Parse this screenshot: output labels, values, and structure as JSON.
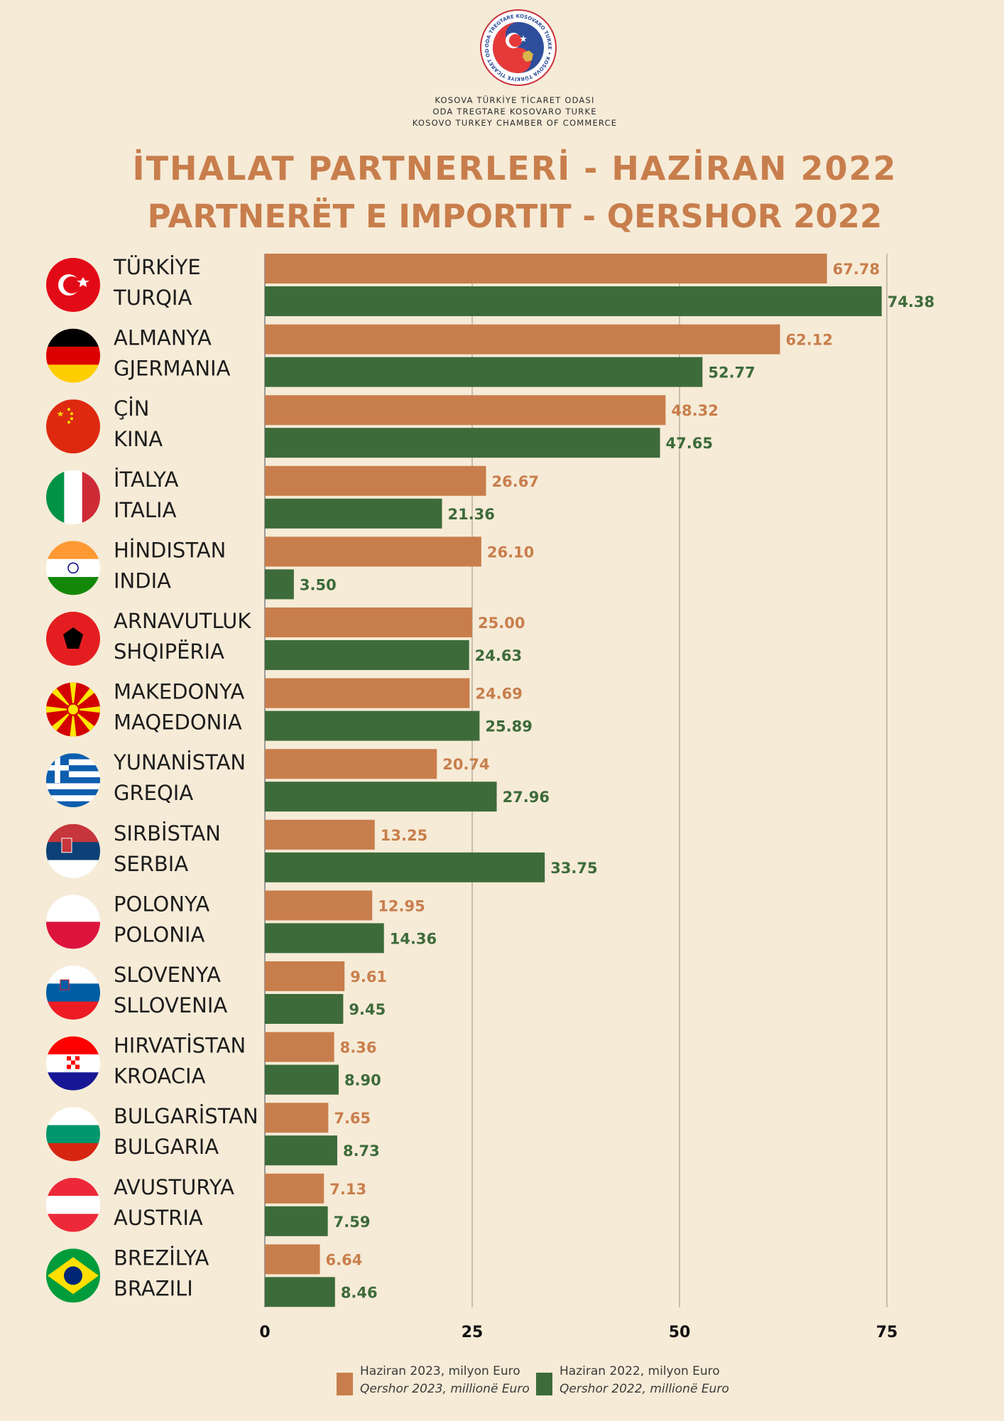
{
  "header": {
    "org_lines": [
      "KOSOVA TÜRKİYE TİCARET ODASI",
      "ODA TREGTARE KOSOVARO TURKE",
      "KOSOVO TURKEY CHAMBER OF COMMERCE"
    ],
    "logo_text": "ODA TREGTARE KOSOVARO TURKE • KOSOVA TÜRKİYE TİCARET ODASI"
  },
  "colors": {
    "background": "#f6ebd7",
    "series_2023": "#c87e4c",
    "series_2022": "#3d6b3a",
    "title": "#c87e4c"
  },
  "chart_data": {
    "type": "bar",
    "orientation": "horizontal",
    "title": "İTHALAT PARTNERLERİ - HAZİRAN 2022",
    "subtitle": "PARTNERËT E IMPORTIT - QERSHOR 2022",
    "categories": [
      {
        "tr": "TÜRKİYE",
        "sq": "TURQIA",
        "flag": "turkey-flag-icon"
      },
      {
        "tr": "ALMANYA",
        "sq": "GJERMANIA",
        "flag": "germany-flag-icon"
      },
      {
        "tr": "ÇİN",
        "sq": "KINA",
        "flag": "china-flag-icon"
      },
      {
        "tr": "İTALYA",
        "sq": "ITALIA",
        "flag": "italy-flag-icon"
      },
      {
        "tr": "HİNDISTAN",
        "sq": "INDIA",
        "flag": "india-flag-icon"
      },
      {
        "tr": "ARNAVUTLUK",
        "sq": "SHQIPËRIA",
        "flag": "albania-flag-icon"
      },
      {
        "tr": "MAKEDONYA",
        "sq": "MAQEDONIA",
        "flag": "macedonia-flag-icon"
      },
      {
        "tr": "YUNANİSTAN",
        "sq": "GREQIA",
        "flag": "greece-flag-icon"
      },
      {
        "tr": "SIRBİSTAN",
        "sq": "SERBIA",
        "flag": "serbia-flag-icon"
      },
      {
        "tr": "POLONYA",
        "sq": "POLONIA",
        "flag": "poland-flag-icon"
      },
      {
        "tr": "SLOVENYA",
        "sq": "SLLOVENIA",
        "flag": "slovenia-flag-icon"
      },
      {
        "tr": "HIRVATİSTAN",
        "sq": "KROACIA",
        "flag": "croatia-flag-icon"
      },
      {
        "tr": "BULGARİSTAN",
        "sq": "BULGARIA",
        "flag": "bulgaria-flag-icon"
      },
      {
        "tr": "AVUSTURYA",
        "sq": "AUSTRIA",
        "flag": "austria-flag-icon"
      },
      {
        "tr": "BREZİLYA",
        "sq": "BRAZILI",
        "flag": "brazil-flag-icon"
      }
    ],
    "series": [
      {
        "name": "Haziran  2023, milyon Euro",
        "name_sq": "Qershor 2023, millionë Euro",
        "values": [
          67.78,
          62.12,
          48.32,
          26.67,
          26.1,
          25.0,
          24.69,
          20.74,
          13.25,
          12.95,
          9.61,
          8.36,
          7.65,
          7.13,
          6.64
        ],
        "labels": [
          "67.78",
          "62.12",
          "48.32",
          "26.67",
          "26.10",
          "25.00",
          "24.69",
          "20.74",
          "13.25",
          "12.95",
          "9.61",
          "8.36",
          "7.65",
          "7.13",
          "6.64"
        ]
      },
      {
        "name": "Haziran 2022, milyon Euro",
        "name_sq": "Qershor 2022, millionë Euro",
        "values": [
          74.38,
          52.77,
          47.65,
          21.36,
          3.5,
          24.63,
          25.89,
          27.96,
          33.75,
          14.36,
          9.45,
          8.9,
          8.73,
          7.59,
          8.46
        ],
        "labels": [
          "74.38",
          "52.77",
          "47.65",
          "21.36",
          "3.50",
          "24.63",
          "25.89",
          "27.96",
          "33.75",
          "14.36",
          "9.45",
          "8.90",
          "8.73",
          "7.59",
          "8.46"
        ]
      }
    ],
    "xlim": [
      0,
      80
    ],
    "xticks": [
      0,
      25,
      50,
      75
    ],
    "grid": true,
    "legend_position": "bottom"
  }
}
